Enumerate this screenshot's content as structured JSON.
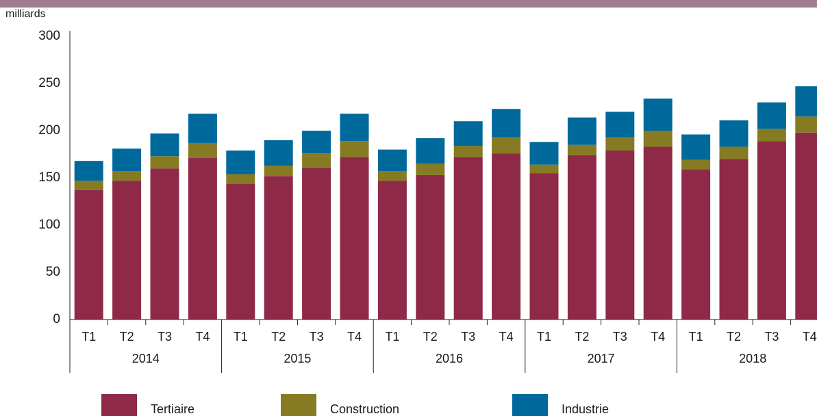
{
  "chart_data": {
    "type": "stacked_bar",
    "y_unit_label": "milliards",
    "categories": [
      "T1",
      "T2",
      "T3",
      "T4",
      "T1",
      "T2",
      "T3",
      "T4",
      "T1",
      "T2",
      "T3",
      "T4",
      "T1",
      "T2",
      "T3",
      "T4",
      "T1",
      "T2",
      "T3",
      "T4"
    ],
    "groups": [
      "2014",
      "2015",
      "2016",
      "2017",
      "2018"
    ],
    "series": [
      {
        "name": "Tertiaire",
        "color": "#8e2a48",
        "values": [
          137,
          147,
          160,
          171,
          144,
          152,
          161,
          172,
          147,
          153,
          172,
          176,
          155,
          174,
          179,
          183,
          159,
          170,
          189,
          198
        ]
      },
      {
        "name": "Construction",
        "color": "#867a23",
        "values": [
          10,
          10,
          13,
          16,
          10,
          11,
          15,
          17,
          10,
          12,
          12,
          17,
          9,
          11,
          14,
          17,
          10,
          13,
          13,
          17
        ]
      },
      {
        "name": "Industrie",
        "color": "#00699c",
        "values": [
          21,
          24,
          24,
          31,
          25,
          27,
          24,
          29,
          23,
          27,
          26,
          30,
          24,
          29,
          27,
          34,
          27,
          28,
          28,
          32
        ]
      }
    ],
    "ylim": [
      0,
      300
    ],
    "yticks": [
      0,
      50,
      100,
      150,
      200,
      250,
      300
    ],
    "grid": false,
    "legend": "bottom"
  }
}
